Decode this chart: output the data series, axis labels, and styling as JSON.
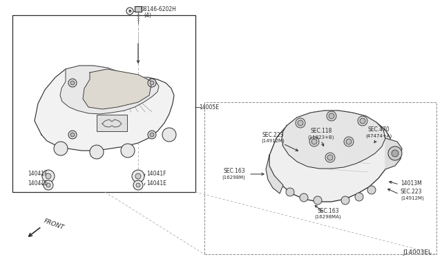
{
  "bg_color": "#ffffff",
  "lc": "#2a2a2a",
  "tc": "#2a2a2a",
  "gc": "#888888",
  "figsize": [
    6.4,
    3.72
  ],
  "dpi": 100,
  "diagram_id": "J14003EL",
  "bolt_label": "08146-6202H",
  "bolt_sub": "(4)",
  "part_14005E": "14005E",
  "part_14041F": "14041F",
  "part_14041E": "14041E",
  "part_14013M": "14013M",
  "sec_223_1": "SEC.223",
  "sec_223_1s": "(14912M)",
  "sec_118": "SEC.118",
  "sec_118s": "(11823+B)",
  "sec_470": "SEC.470",
  "sec_470s": "(47474+A)",
  "sec_163L": "SEC.163",
  "sec_163Ls": "(16298M)",
  "sec_223_2": "SEC.223",
  "sec_223_2s": "(14912M)",
  "sec_163B": "SEC.163",
  "sec_163Bs": "(16298MA)",
  "fs": 5.5,
  "fs2": 5.0
}
